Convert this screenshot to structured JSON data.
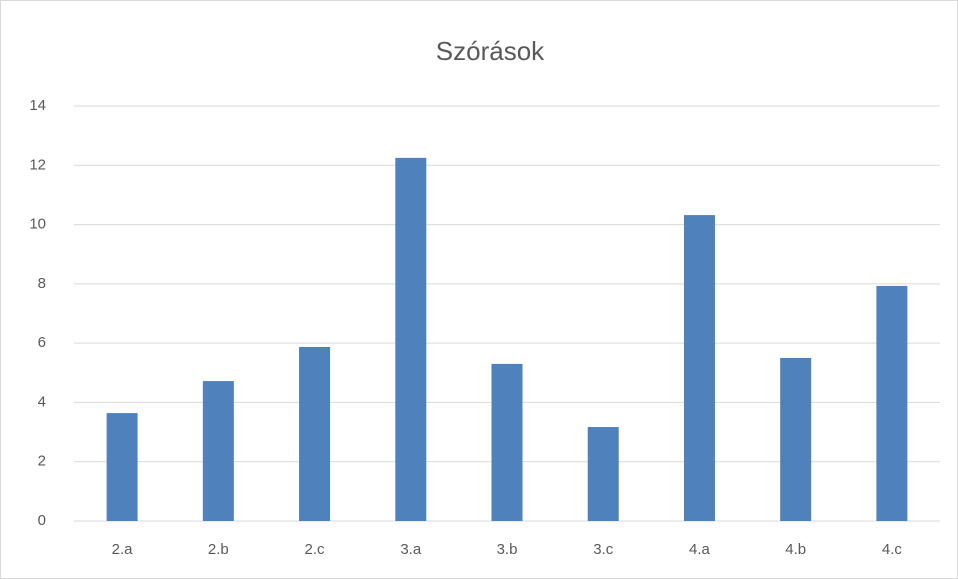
{
  "chart_data": {
    "type": "bar",
    "title": "Szórások",
    "categories": [
      "2.a",
      "2.b",
      "2.c",
      "3.a",
      "3.b",
      "3.c",
      "4.a",
      "4.b",
      "4.c"
    ],
    "values": [
      3.64,
      4.72,
      5.87,
      12.25,
      5.3,
      3.17,
      10.32,
      5.5,
      7.93
    ],
    "color": "#4f81bd",
    "ylim": [
      0,
      14
    ],
    "yticks": [
      0,
      2,
      4,
      6,
      8,
      10,
      12,
      14
    ],
    "grid": true
  }
}
